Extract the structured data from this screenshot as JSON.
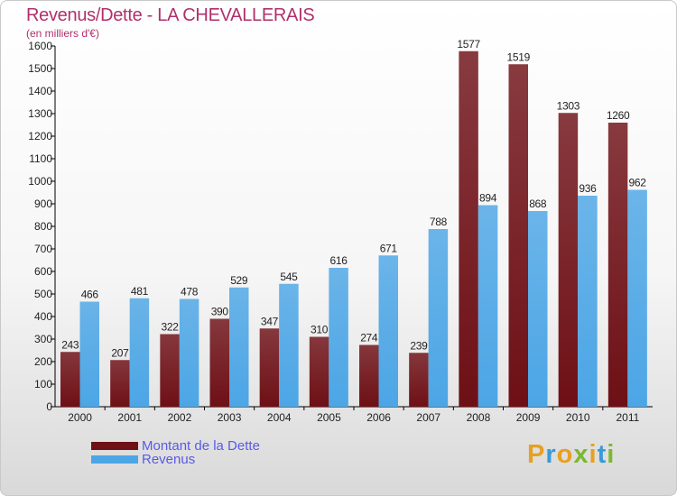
{
  "chart_data": {
    "type": "bar",
    "title": "Revenus/Dette - LA CHEVALLERAIS",
    "subtitle": "(en milliers d'€)",
    "categories": [
      "2000",
      "2001",
      "2002",
      "2003",
      "2004",
      "2005",
      "2006",
      "2007",
      "2008",
      "2009",
      "2010",
      "2011"
    ],
    "series": [
      {
        "name": "Montant de la Dette",
        "color": "#6e1016",
        "values": [
          243,
          207,
          322,
          390,
          347,
          310,
          274,
          239,
          1577,
          1519,
          1303,
          1260
        ]
      },
      {
        "name": "Revenus",
        "color": "#4ca6e6",
        "values": [
          466,
          481,
          478,
          529,
          545,
          616,
          671,
          788,
          894,
          868,
          936,
          962
        ]
      }
    ],
    "ylim": [
      0,
      1600
    ],
    "ytick_step": 100,
    "grid": false,
    "legend_position": "bottom-left"
  },
  "brand": {
    "letters": [
      "P",
      "r",
      "o",
      "x",
      "i",
      "t",
      "i"
    ],
    "colors": [
      "#e8a020",
      "#3a9ad6",
      "#e8a020",
      "#7cb82f",
      "#e8a020",
      "#3a9ad6",
      "#7cb82f"
    ]
  }
}
